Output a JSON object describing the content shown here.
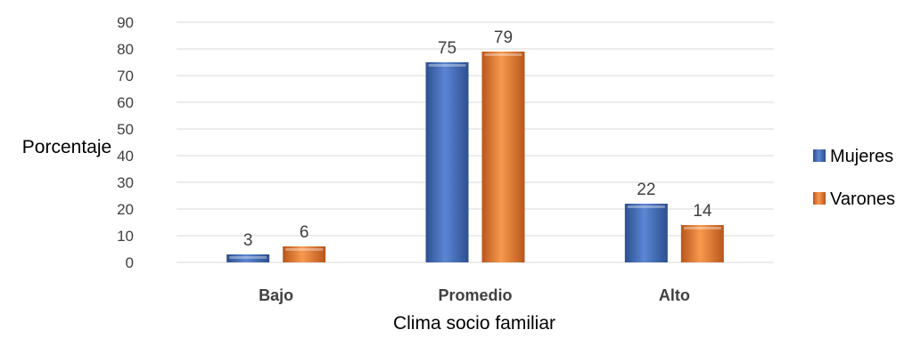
{
  "chart_data": {
    "type": "bar",
    "categories": [
      "Bajo",
      "Promedio",
      "Alto"
    ],
    "series": [
      {
        "name": "Mujeres",
        "values": [
          3,
          75,
          22
        ],
        "color": "#4472C4"
      },
      {
        "name": "Varones",
        "values": [
          6,
          79,
          14
        ],
        "color": "#ED7D31"
      }
    ],
    "xlabel": "Clima socio familiar",
    "ylabel": "Porcentaje",
    "ylim": [
      0,
      90
    ],
    "yticks": [
      0,
      10,
      20,
      30,
      40,
      50,
      60,
      70,
      80,
      90
    ],
    "grid": true,
    "legend_position": "right",
    "data_labels": true
  }
}
